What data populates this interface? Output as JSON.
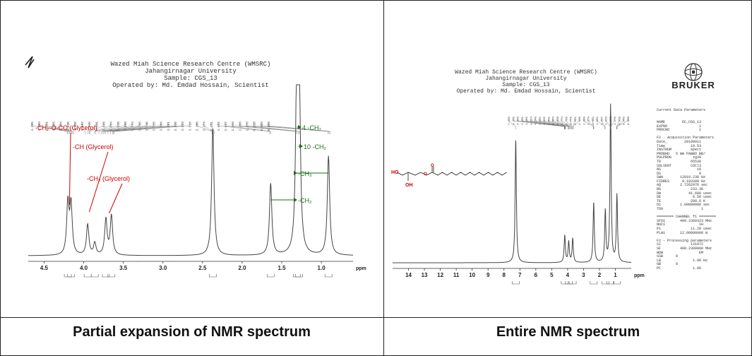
{
  "header": {
    "line1": "Wazed Miah Science Research Centre (WMSRC)",
    "line2": "Jahangirnagar University",
    "line3": "Sample: CGS_13",
    "line4": "Operated by: Md. Emdad Hossain, Scientist"
  },
  "captions": {
    "left": "Partial expansion of NMR spectrum",
    "right": "Entire NMR spectrum"
  },
  "brand": {
    "logo_text": "BRUKER"
  },
  "colors": {
    "red_annotation": "#cc0000",
    "green_annotation": "#1a6e1a",
    "spectrum": "#444444"
  },
  "chart_data": [
    {
      "type": "line",
      "xlabel": "ppm",
      "xlim": [
        4.7,
        0.6
      ],
      "x_ticks": [
        4.5,
        4.0,
        3.5,
        3.0,
        2.5,
        2.0,
        1.5,
        1.0
      ],
      "x_tick_labels": [
        "4.5",
        "4.0",
        "3.5",
        "3.0",
        "2.5",
        "2.0",
        "1.5",
        "1.0"
      ],
      "peak_labels": [
        "4.205",
        "4.193",
        "4.181",
        "4.165",
        "4.154",
        "4.140",
        "4.128",
        "3.982",
        "3.945",
        "3.931",
        "3.920",
        "3.864",
        "3.848",
        "3.808",
        "3.774",
        "3.756",
        "3.740",
        "3.725",
        "3.694",
        "3.661",
        "3.636",
        "3.623",
        "3.614",
        "2.380",
        "2.374",
        "2.351",
        "1.652",
        "1.637",
        "1.313",
        "1.293",
        "1.276",
        "0.918",
        "0.903",
        "0.888"
      ],
      "annotations": [
        {
          "label": "-CH₂-O-CO (Glycerol)",
          "color": "red",
          "ppm": 4.18
        },
        {
          "label": "-CH (Glycerol)",
          "color": "red",
          "ppm": 3.93
        },
        {
          "label": "-CH₂ (Glycerol)",
          "color": "red",
          "ppm": 3.68
        },
        {
          "label": "4 -CH₂",
          "color": "green",
          "ppm": 1.31
        },
        {
          "label": "10 -CH₂",
          "color": "green",
          "ppm": 1.29
        },
        {
          "label": "-CH₃",
          "color": "green",
          "ppm": 0.91
        },
        {
          "label": "-CH₂",
          "color": "green",
          "ppm": 1.64
        }
      ],
      "peaks": [
        {
          "ppm": 4.2,
          "height": 0.3
        },
        {
          "ppm": 4.16,
          "height": 0.29
        },
        {
          "ppm": 3.95,
          "height": 0.18
        },
        {
          "ppm": 3.86,
          "height": 0.07
        },
        {
          "ppm": 3.72,
          "height": 0.21
        },
        {
          "ppm": 3.65,
          "height": 0.23
        },
        {
          "ppm": 2.37,
          "height": 0.75
        },
        {
          "ppm": 1.64,
          "height": 0.42
        },
        {
          "ppm": 1.31,
          "height": 0.98
        },
        {
          "ppm": 1.28,
          "height": 0.95
        },
        {
          "ppm": 0.91,
          "height": 0.58
        }
      ]
    },
    {
      "type": "line",
      "xlabel": "ppm",
      "xlim": [
        15,
        0
      ],
      "x_ticks": [
        14,
        13,
        12,
        11,
        10,
        9,
        8,
        7,
        6,
        5,
        4,
        3,
        2,
        1
      ],
      "x_tick_labels": [
        "14",
        "13",
        "12",
        "11",
        "10",
        "9",
        "8",
        "7",
        "6",
        "5",
        "4",
        "3",
        "2",
        "1"
      ],
      "peak_labels": [
        "7.260",
        "4.205",
        "4.193",
        "4.181",
        "4.165",
        "4.154",
        "4.140",
        "3.982",
        "3.945",
        "3.931",
        "3.864",
        "3.848",
        "3.774",
        "3.756",
        "3.725",
        "3.661",
        "3.636",
        "2.380",
        "2.374",
        "2.351",
        "1.652",
        "1.637",
        "1.313",
        "1.293",
        "1.276",
        "0.918",
        "0.903",
        "0.888"
      ],
      "peaks": [
        {
          "ppm": 7.26,
          "height": 0.78
        },
        {
          "ppm": 4.18,
          "height": 0.17
        },
        {
          "ppm": 3.93,
          "height": 0.13
        },
        {
          "ppm": 3.68,
          "height": 0.15
        },
        {
          "ppm": 2.36,
          "height": 0.38
        },
        {
          "ppm": 1.63,
          "height": 0.32
        },
        {
          "ppm": 1.3,
          "height": 0.98
        },
        {
          "ppm": 0.9,
          "height": 0.42
        }
      ]
    }
  ],
  "parameters": {
    "header": "Current Data Parameters",
    "lines": [
      "NAME        DC_CGS_13",
      "EXPNO               1",
      "PROCNO              1",
      "",
      "F2 - Acquisition Parameters",
      "Date_        20190911",
      "Time            19.53",
      "INSTRUM         spect",
      "PROBHD   5 mm PABBO BB/",
      "PULPROG          zg30",
      "TD              65536",
      "SOLVENT         CDCl3",
      "NS                 16",
      "DS                  0",
      "SWH        12019.230 Hz",
      "FIDRES      0.183399 Hz",
      "AQ         2.7262976 sec",
      "RG              233.36",
      "DW             41.600 usec",
      "DE               6.50 usec",
      "TE              299.6 K",
      "D1         1.00000000 sec",
      "TD0                  1",
      "",
      "======== CHANNEL f1 ========",
      "SFO1       400.2360323 MHz",
      "NUC1                1H",
      "P1              11.20 usec",
      "PLW1       12.00000000 W",
      "",
      "F2 - Processing parameters",
      "SI              131072",
      "SF         400.2300000 MHz",
      "WDW                 EM",
      "SSB      0",
      "LB               1.00 Hz",
      "GB       0",
      "PC               1.00"
    ]
  }
}
